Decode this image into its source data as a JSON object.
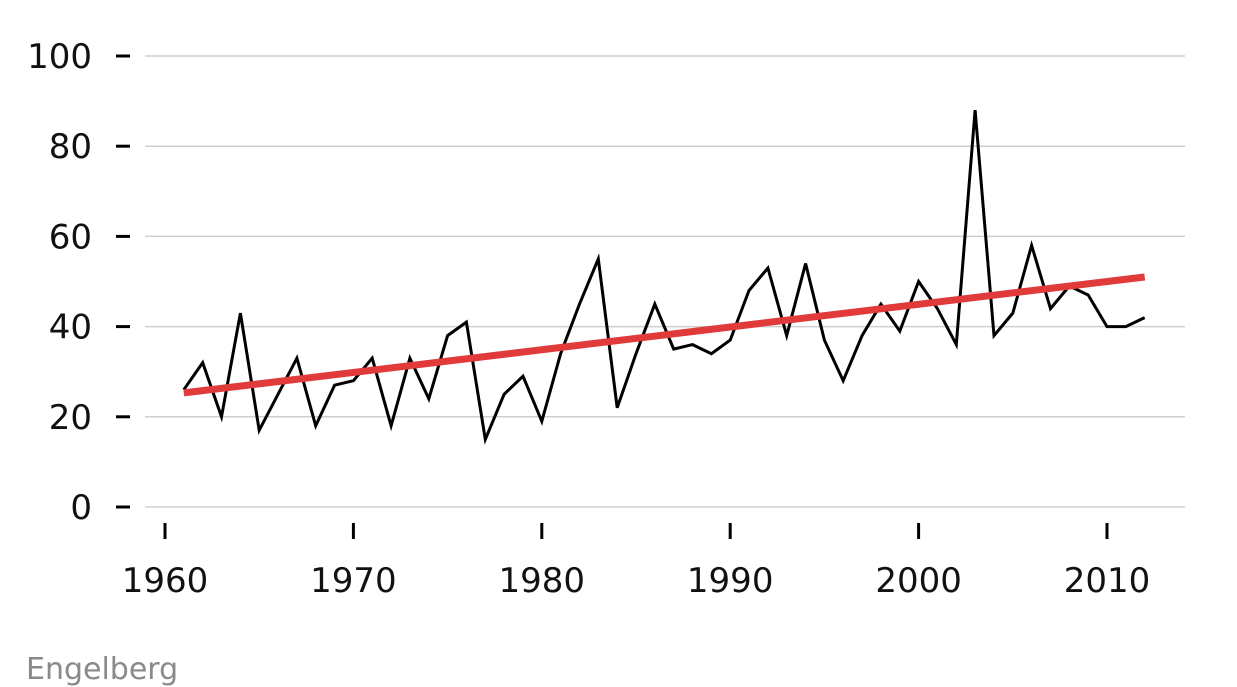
{
  "caption": "Engelberg",
  "colors": {
    "series": "#000000",
    "trend": "#e03a3a",
    "grid": "#cfcfcf",
    "caption": "#8a8a8a"
  },
  "chart_data": {
    "type": "line",
    "title": "",
    "xlabel": "",
    "ylabel": "",
    "xlim": [
      1960,
      2012
    ],
    "ylim": [
      0,
      100
    ],
    "xticks": [
      1960,
      1970,
      1980,
      1990,
      2000,
      2010
    ],
    "yticks": [
      0,
      20,
      40,
      60,
      80,
      100
    ],
    "grid": "horizontal",
    "series": [
      {
        "x": [
          1961,
          1962,
          1963,
          1964,
          1965,
          1966,
          1967,
          1968,
          1969,
          1970,
          1971,
          1972,
          1973,
          1974,
          1975,
          1976,
          1977,
          1978,
          1979,
          1980,
          1981,
          1982,
          1983,
          1984,
          1985,
          1986,
          1987,
          1988,
          1989,
          1990,
          1991,
          1992,
          1993,
          1994,
          1995,
          1996,
          1997,
          1998,
          1999,
          2000,
          2001,
          2002,
          2003,
          2004,
          2005,
          2006,
          2007,
          2008,
          2009,
          2010,
          2011,
          2012
        ],
        "values": [
          26,
          32,
          20,
          43,
          17,
          25,
          33,
          18,
          27,
          28,
          33,
          18,
          33,
          24,
          38,
          41,
          15,
          25,
          29,
          19,
          34,
          45,
          55,
          22,
          34,
          45,
          35,
          36,
          34,
          37,
          48,
          53,
          38,
          54,
          37,
          28,
          38,
          45,
          39,
          50,
          44,
          36,
          88,
          38,
          43,
          58,
          44,
          49,
          47,
          40,
          40,
          42
        ]
      },
      {
        "x": [
          1961,
          2012
        ],
        "values": [
          25.3,
          51
        ]
      }
    ]
  }
}
